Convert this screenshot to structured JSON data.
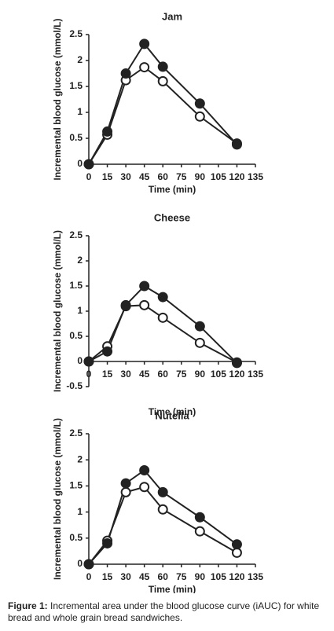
{
  "chart_data": [
    {
      "type": "line",
      "title": "Jam",
      "x_label": "Time (min)",
      "y_label": "Incremental blood glucose (mmol/L)",
      "x": [
        0,
        15,
        30,
        45,
        60,
        90,
        120
      ],
      "series": [
        {
          "color": "#222222",
          "marker": "open",
          "values": [
            0,
            0.57,
            1.62,
            1.87,
            1.6,
            0.92,
            0.4
          ]
        },
        {
          "color": "#222222",
          "marker": "filled",
          "values": [
            0,
            0.63,
            1.75,
            2.32,
            1.88,
            1.17,
            0.38
          ]
        }
      ],
      "xlim": [
        0,
        135
      ],
      "xticks": [
        0,
        15,
        30,
        45,
        60,
        75,
        90,
        105,
        120,
        135
      ],
      "ylim": [
        0,
        2.5
      ],
      "yticks": [
        0,
        0.5,
        1,
        1.5,
        2,
        2.5
      ]
    },
    {
      "type": "line",
      "title": "Cheese",
      "x_label": "Time (min)",
      "y_label": "Incremental blood glucose (mmol/L)",
      "x": [
        0,
        15,
        30,
        45,
        60,
        90,
        120
      ],
      "series": [
        {
          "color": "#222222",
          "marker": "open",
          "values": [
            0,
            0.3,
            1.1,
            1.12,
            0.87,
            0.37,
            -0.02
          ]
        },
        {
          "color": "#222222",
          "marker": "filled",
          "values": [
            0,
            0.2,
            1.12,
            1.5,
            1.28,
            0.7,
            -0.03
          ]
        }
      ],
      "xlim": [
        0,
        135
      ],
      "xticks": [
        0,
        15,
        30,
        45,
        60,
        75,
        90,
        105,
        120,
        135
      ],
      "ylim": [
        -0.5,
        2.5
      ],
      "yticks": [
        -0.5,
        0,
        0.5,
        1,
        1.5,
        2,
        2.5
      ]
    },
    {
      "type": "line",
      "title": "Nutella",
      "x_label": "Time (min)",
      "y_label": "Incremental blood glucose (mmol/L)",
      "x": [
        0,
        15,
        30,
        45,
        60,
        90,
        120
      ],
      "series": [
        {
          "color": "#222222",
          "marker": "open",
          "values": [
            0,
            0.45,
            1.38,
            1.48,
            1.05,
            0.63,
            0.22
          ]
        },
        {
          "color": "#222222",
          "marker": "filled",
          "values": [
            0,
            0.4,
            1.55,
            1.8,
            1.38,
            0.9,
            0.38
          ]
        }
      ],
      "xlim": [
        0,
        135
      ],
      "xticks": [
        0,
        15,
        30,
        45,
        60,
        75,
        90,
        105,
        120,
        135
      ],
      "ylim": [
        0,
        2.5
      ],
      "yticks": [
        0,
        0.5,
        1,
        1.5,
        2,
        2.5
      ]
    }
  ],
  "caption": {
    "label": "Figure 1:",
    "text": "Incremental area under the blood glucose curve (iAUC) for white bread and whole grain bread sandwiches."
  }
}
